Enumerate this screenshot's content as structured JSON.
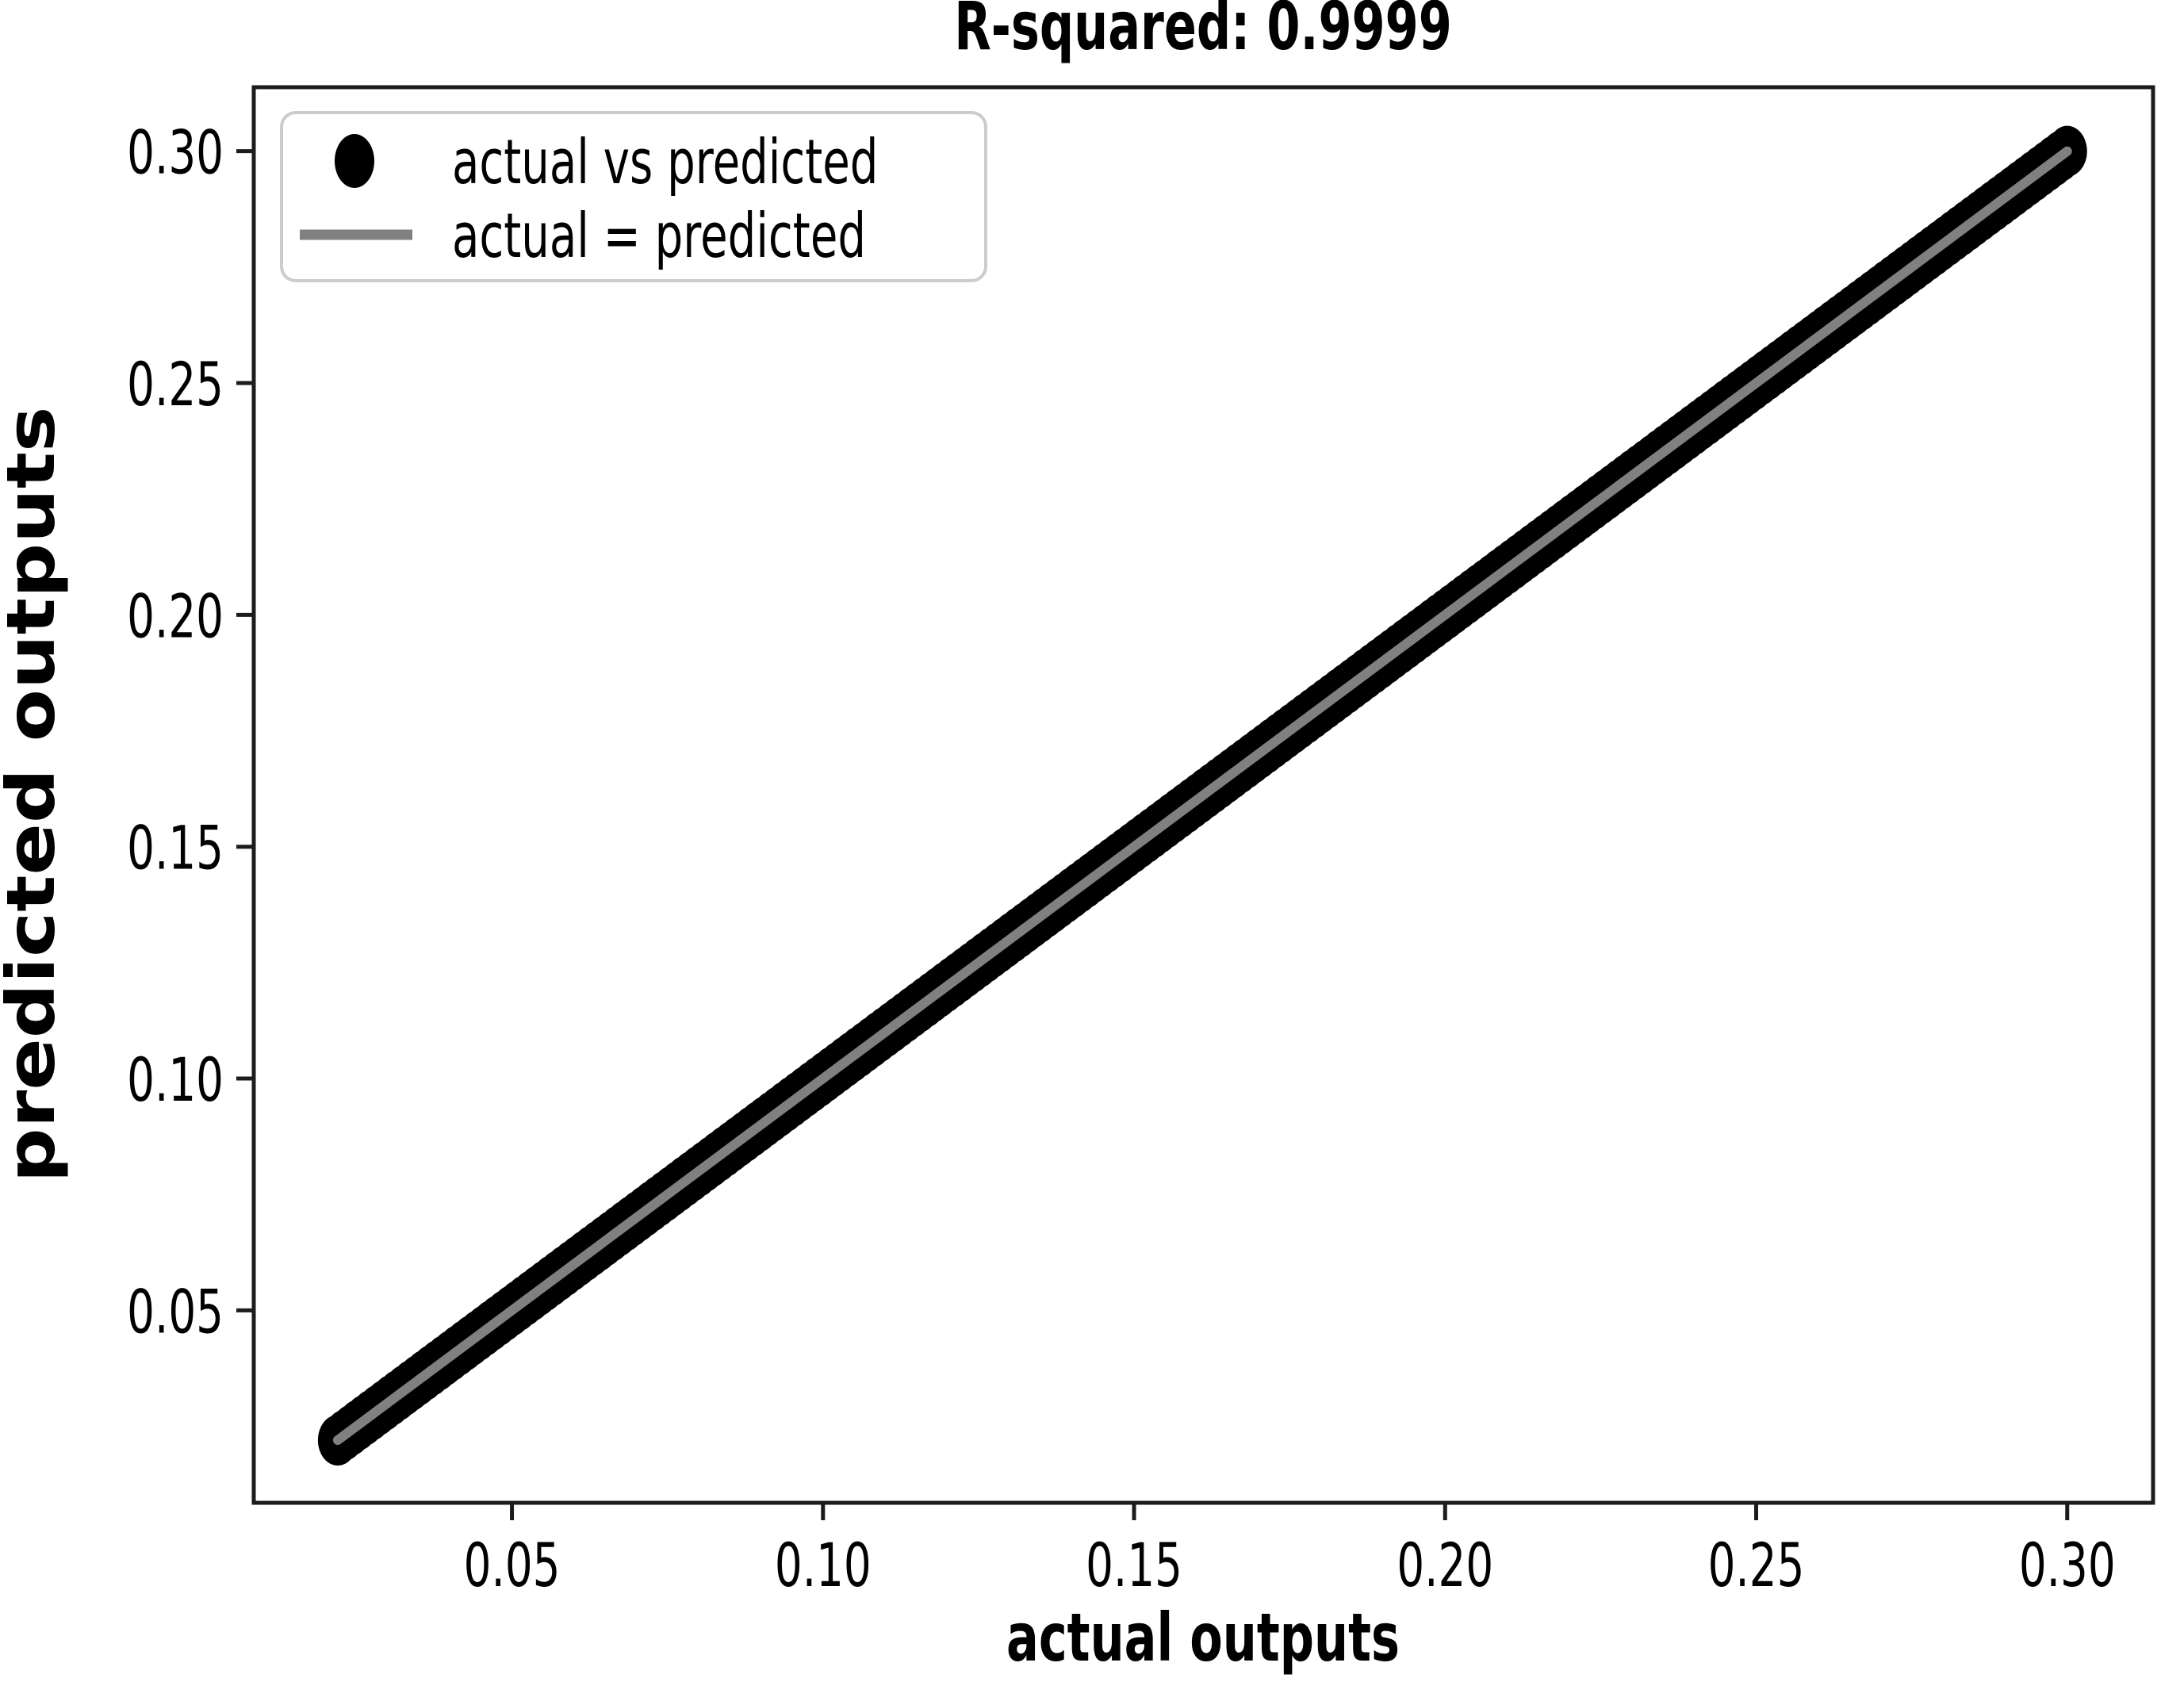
{
  "page": {
    "background": "#ffffff"
  },
  "chart_data": {
    "type": "scatter",
    "title": "R-squared: 0.9999",
    "xlabel": "actual outputs",
    "ylabel": "predicted outputs",
    "xlim": [
      0.0085,
      0.3138
    ],
    "ylim": [
      0.0085,
      0.3138
    ],
    "x_ticks": [
      0.05,
      0.1,
      0.15,
      0.2,
      0.25,
      0.3
    ],
    "x_tick_labels": [
      "0.05",
      "0.10",
      "0.15",
      "0.20",
      "0.25",
      "0.30"
    ],
    "y_ticks": [
      0.05,
      0.1,
      0.15,
      0.2,
      0.25,
      0.3
    ],
    "y_tick_labels": [
      "0.05",
      "0.10",
      "0.15",
      "0.20",
      "0.25",
      "0.30"
    ],
    "grid": false,
    "legend": {
      "position": "upper-left",
      "entries": [
        {
          "label": "actual vs predicted",
          "marker": "circle",
          "color": "#000000"
        },
        {
          "label": "actual = predicted",
          "marker": "line",
          "color": "#808080"
        }
      ]
    },
    "series": [
      {
        "name": "actual vs predicted",
        "type": "scatter",
        "color": "#000000",
        "relationship": "points lie exactly on the identity line y = x, forming a continuous thick band",
        "x_min": 0.022,
        "x_max": 0.3,
        "y_min": 0.022,
        "y_max": 0.3,
        "n_points_visual": 260
      },
      {
        "name": "actual = predicted",
        "type": "line",
        "color": "#808080",
        "x": [
          0.022,
          0.3
        ],
        "y": [
          0.022,
          0.3
        ]
      }
    ],
    "annotations": {
      "r_squared": 0.9999
    }
  },
  "colors": {
    "axis": "#1c1c1c",
    "text": "#000000",
    "legend_border": "#cccccc",
    "reference_line": "#808080",
    "scatter": "#000000",
    "background": "#ffffff"
  }
}
